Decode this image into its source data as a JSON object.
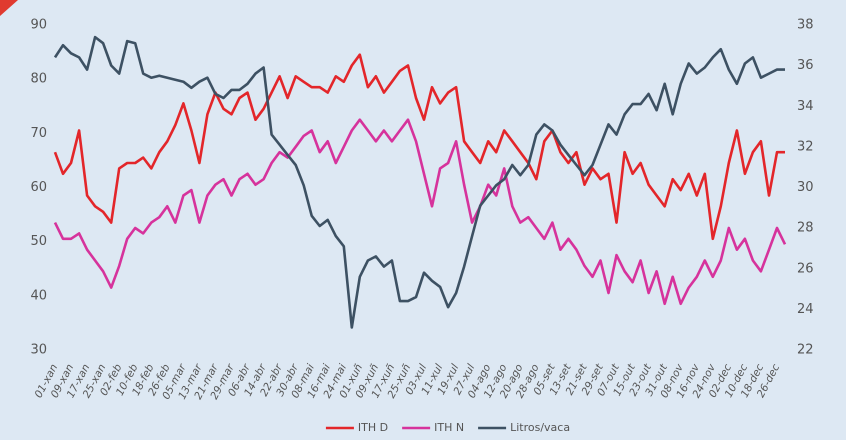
{
  "chart_data": {
    "type": "line",
    "categories": [
      "01-xan",
      null,
      "09-xan",
      null,
      "17-xan",
      null,
      "25-xan",
      null,
      "02-feb",
      null,
      "10-feb",
      null,
      "18-feb",
      null,
      "26-feb",
      null,
      "05-mar",
      null,
      "13-mar",
      null,
      "21-mar",
      null,
      "29-mar",
      null,
      "06-abr",
      null,
      "14-abr",
      null,
      "22-abr",
      null,
      "30-abr",
      null,
      "08-mai",
      null,
      "16-mai",
      null,
      "24-mai",
      null,
      "01-xuñ",
      null,
      "09-xuñ",
      null,
      "17-xuñ",
      null,
      "25-xuñ",
      null,
      "03-xul",
      null,
      "11-xul",
      null,
      "19-xul",
      null,
      "27-xul",
      null,
      "04-ago",
      null,
      "12-ago",
      null,
      "20-ago",
      null,
      "28-ago",
      null,
      "05-set",
      null,
      "13-set",
      null,
      "21-set",
      null,
      "29-set",
      null,
      "07-out",
      null,
      "15-out",
      null,
      "23-out",
      null,
      "31-out",
      null,
      "08-nov",
      null,
      "16-nov",
      null,
      "24-nov",
      null,
      "02-dec",
      null,
      "10-dec",
      null,
      "18-dec",
      null,
      "26-dec",
      null
    ],
    "series": [
      {
        "name": "ITH D",
        "color": "#e3262a",
        "values": [
          68,
          64,
          66,
          72,
          60,
          58,
          57,
          55,
          65,
          66,
          66,
          67,
          65,
          68,
          70,
          73,
          77,
          72,
          66,
          75,
          79,
          76,
          75,
          78,
          79,
          74,
          76,
          79,
          82,
          78,
          82,
          81,
          80,
          80,
          79,
          82,
          81,
          84,
          86,
          80,
          82,
          79,
          81,
          83,
          84,
          78,
          74,
          80,
          77,
          79,
          80,
          70,
          68,
          66,
          70,
          68,
          72,
          70,
          68,
          66,
          63,
          70,
          72,
          68,
          66,
          68,
          62,
          65,
          63,
          64,
          55,
          68,
          64,
          66,
          62,
          60,
          58,
          63,
          61,
          64,
          60,
          64,
          52,
          58,
          66,
          72,
          64,
          68,
          70,
          60,
          68,
          68
        ]
      },
      {
        "name": "ITH N",
        "color": "#d6339c",
        "values": [
          55,
          52,
          52,
          53,
          50,
          48,
          46,
          43,
          47,
          52,
          54,
          53,
          55,
          56,
          58,
          55,
          60,
          61,
          55,
          60,
          62,
          63,
          60,
          63,
          64,
          62,
          63,
          66,
          68,
          67,
          69,
          71,
          72,
          68,
          70,
          66,
          69,
          72,
          74,
          72,
          70,
          72,
          70,
          72,
          74,
          70,
          64,
          58,
          65,
          66,
          70,
          62,
          55,
          58,
          62,
          60,
          65,
          58,
          55,
          56,
          54,
          52,
          55,
          50,
          52,
          50,
          47,
          45,
          48,
          42,
          49,
          46,
          44,
          48,
          42,
          46,
          40,
          45,
          40,
          43,
          45,
          48,
          45,
          48,
          54,
          50,
          52,
          48,
          46,
          50,
          54,
          51
        ]
      },
      {
        "name": "Litros/vaca",
        "color": "#3d5163",
        "axis": "y2",
        "values": [
          36.8,
          37.4,
          37.0,
          36.8,
          36.2,
          37.8,
          37.5,
          36.4,
          36.0,
          37.6,
          37.5,
          36.0,
          35.8,
          35.9,
          35.8,
          35.7,
          35.6,
          35.3,
          35.6,
          35.8,
          35.0,
          34.8,
          35.2,
          35.2,
          35.5,
          36.0,
          36.3,
          33.0,
          32.5,
          32.0,
          31.5,
          30.5,
          29.0,
          28.5,
          28.8,
          28.0,
          27.5,
          23.5,
          26.0,
          26.8,
          27.0,
          26.5,
          26.8,
          24.8,
          24.8,
          25.0,
          26.2,
          25.8,
          25.5,
          24.5,
          25.2,
          26.5,
          28.0,
          29.5,
          30.0,
          30.5,
          30.8,
          31.5,
          31.0,
          31.5,
          33.0,
          33.5,
          33.2,
          32.5,
          32.0,
          31.5,
          31.0,
          31.5,
          32.5,
          33.5,
          33.0,
          34.0,
          34.5,
          34.5,
          35.0,
          34.2,
          35.5,
          34.0,
          35.5,
          36.5,
          36.0,
          36.3,
          36.8,
          37.2,
          36.2,
          35.5,
          36.5,
          36.8,
          35.8,
          36.0,
          36.2,
          36.2
        ]
      }
    ],
    "ylim": [
      30,
      90
    ],
    "yticks": [
      30,
      40,
      50,
      60,
      70,
      80,
      90
    ],
    "y2lim": [
      22,
      38
    ],
    "y2ticks": [
      22,
      24,
      26,
      28,
      30,
      32,
      34,
      36,
      38
    ],
    "grid": true,
    "legend": "bottom"
  }
}
